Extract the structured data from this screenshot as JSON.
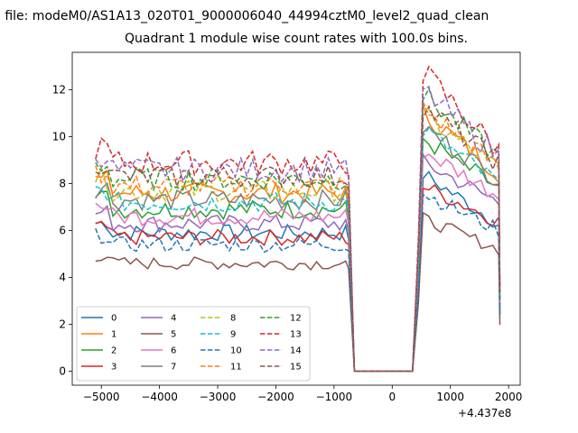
{
  "chart_data": {
    "type": "line",
    "suptitle": "n file: modeM0/AS1A13_020T01_9000006040_44994cztM0_level2_quad_clean",
    "title": "Quadrant 1 module wise count rates with 100.0s bins.",
    "xlabel": "",
    "ylabel": "",
    "x_offset_label": "+4.437e8",
    "xlim": [
      -5500,
      2200
    ],
    "ylim": [
      -0.6,
      13.6
    ],
    "xticks": [
      -5000,
      -4000,
      -3000,
      -2000,
      -1000,
      0,
      1000,
      2000
    ],
    "xtick_labels": [
      "−5000",
      "−4000",
      "−3000",
      "−2000",
      "−1000",
      "0",
      "1000",
      "2000"
    ],
    "yticks": [
      0,
      2,
      4,
      6,
      8,
      10,
      12
    ],
    "ytick_labels": [
      "0",
      "2",
      "4",
      "6",
      "8",
      "10",
      "12"
    ],
    "grid": false,
    "legend_position": "lower-left",
    "legend_columns": 4,
    "gap_start": -650,
    "gap_end": 350,
    "series": [
      {
        "name": "0",
        "color": "#1f77b4",
        "dash": "solid",
        "pre": 5.9,
        "post_peak": 8.4,
        "post_end": 6.3
      },
      {
        "name": "1",
        "color": "#ff7f0e",
        "dash": "solid",
        "pre": 7.6,
        "post_peak": 11.0,
        "post_end": 8.5
      },
      {
        "name": "2",
        "color": "#2ca02c",
        "dash": "solid",
        "pre": 6.9,
        "post_peak": 9.9,
        "post_end": 7.8
      },
      {
        "name": "3",
        "color": "#d62728",
        "dash": "solid",
        "pre": 5.7,
        "post_peak": 7.9,
        "post_end": 6.4
      },
      {
        "name": "4",
        "color": "#9467bd",
        "dash": "solid",
        "pre": 6.3,
        "post_peak": 8.9,
        "post_end": 7.2
      },
      {
        "name": "5",
        "color": "#8c564b",
        "dash": "solid",
        "pre": 4.6,
        "post_peak": 6.5,
        "post_end": 5.2
      },
      {
        "name": "6",
        "color": "#e377c2",
        "dash": "solid",
        "pre": 6.6,
        "post_peak": 9.4,
        "post_end": 7.5
      },
      {
        "name": "7",
        "color": "#7f7f7f",
        "dash": "solid",
        "pre": 7.3,
        "post_peak": 10.4,
        "post_end": 8.2
      },
      {
        "name": "8",
        "color": "#bcbd22",
        "dash": "dashed",
        "pre": 7.7,
        "post_peak": 10.9,
        "post_end": 8.6
      },
      {
        "name": "9",
        "color": "#17becf",
        "dash": "dashed",
        "pre": 7.2,
        "post_peak": 10.3,
        "post_end": 8.0
      },
      {
        "name": "10",
        "color": "#1f77b4",
        "dash": "dashed",
        "pre": 5.4,
        "post_peak": 7.6,
        "post_end": 6.0
      },
      {
        "name": "11",
        "color": "#ff7f0e",
        "dash": "dashed",
        "pre": 7.9,
        "post_peak": 11.2,
        "post_end": 8.7
      },
      {
        "name": "12",
        "color": "#2ca02c",
        "dash": "dashed",
        "pre": 8.2,
        "post_peak": 11.8,
        "post_end": 9.1
      },
      {
        "name": "13",
        "color": "#d62728",
        "dash": "dashed",
        "pre": 8.9,
        "post_peak": 12.8,
        "post_end": 9.4
      },
      {
        "name": "14",
        "color": "#9467bd",
        "dash": "dashed",
        "pre": 8.6,
        "post_peak": 12.0,
        "post_end": 9.2
      },
      {
        "name": "15",
        "color": "#8c564b",
        "dash": "dashed",
        "pre": 8.3,
        "post_peak": 11.3,
        "post_end": 8.9
      }
    ]
  }
}
